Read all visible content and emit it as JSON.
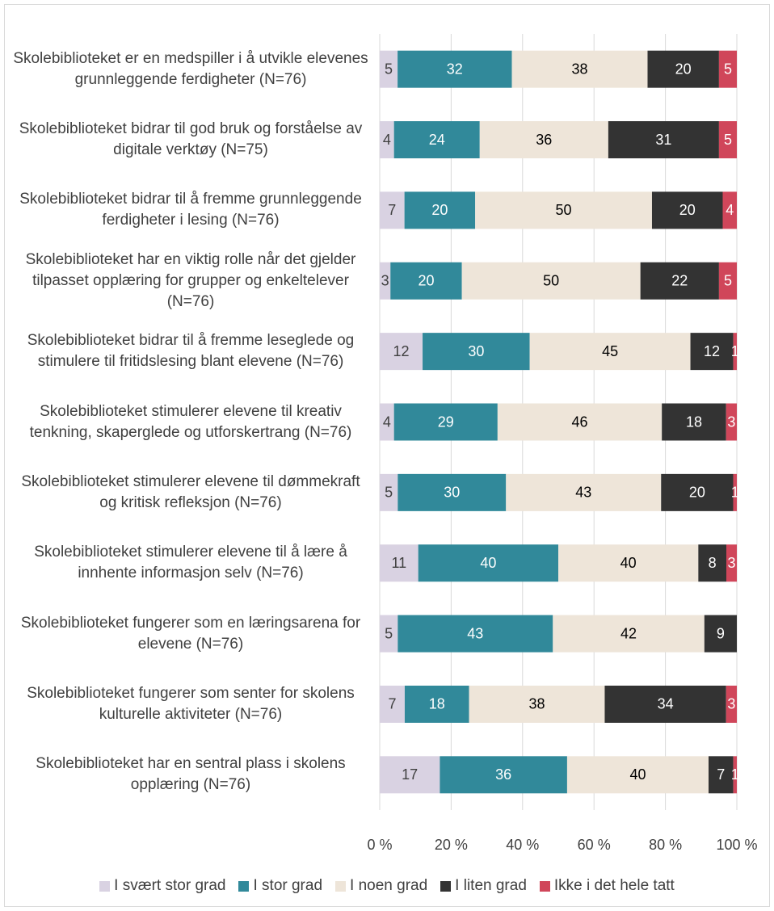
{
  "chart_data": {
    "type": "bar",
    "orientation": "horizontal",
    "stacking": "percent",
    "categories": [
      "Skolebiblioteket er en medspiller i å utvikle elevenes grunnleggende ferdigheter (N=76)",
      "Skolebiblioteket bidrar til god bruk og forståelse av digitale verktøy (N=75)",
      "Skolebiblioteket bidrar til å fremme grunnleggende ferdigheter i lesing (N=76)",
      "Skolebiblioteket har en viktig rolle når det gjelder tilpasset opplæring for grupper og enkeltelever (N=76)",
      "Skolebiblioteket bidrar til å fremme leseglede og stimulere til fritidslesing blant elevene (N=76)",
      "Skolebiblioteket stimulerer elevene til kreativ tenkning, skaperglede og utforskertrang (N=76)",
      "Skolebiblioteket stimulerer elevene til dømmekraft og kritisk refleksjon (N=76)",
      "Skolebiblioteket stimulerer elevene til å lære å innhente informasjon selv (N=76)",
      "Skolebiblioteket fungerer som en læringsarena for elevene (N=76)",
      "Skolebiblioteket fungerer som senter for skolens kulturelle aktiviteter (N=76)",
      "Skolebiblioteket har en sentral plass i skolens opplæring (N=76)"
    ],
    "series": [
      {
        "name": "I svært stor grad",
        "color": "#d9d2e2",
        "label_color": "#404040",
        "values": [
          5,
          4,
          7,
          3,
          12,
          4,
          5,
          11,
          5,
          7,
          17
        ]
      },
      {
        "name": "I stor grad",
        "color": "#31899a",
        "label_color": "#ffffff",
        "values": [
          32,
          24,
          20,
          20,
          30,
          29,
          30,
          40,
          43,
          18,
          36
        ]
      },
      {
        "name": "I noen grad",
        "color": "#eee5d9",
        "label_color": "#000000",
        "values": [
          38,
          36,
          50,
          50,
          45,
          46,
          43,
          40,
          42,
          38,
          40
        ]
      },
      {
        "name": "I liten grad",
        "color": "#333333",
        "label_color": "#ffffff",
        "values": [
          20,
          31,
          20,
          22,
          12,
          18,
          20,
          8,
          9,
          34,
          7
        ]
      },
      {
        "name": "Ikke i det hele tatt",
        "color": "#d0465a",
        "label_color": "#ffffff",
        "values": [
          5,
          5,
          4,
          5,
          1,
          3,
          1,
          3,
          null,
          3,
          1
        ]
      }
    ],
    "xlim": [
      0,
      100
    ],
    "xticks": [
      {
        "value": 0,
        "label": "0 %"
      },
      {
        "value": 20,
        "label": "20 %"
      },
      {
        "value": 40,
        "label": "40 %"
      },
      {
        "value": 60,
        "label": "60 %"
      },
      {
        "value": 80,
        "label": "80 %"
      },
      {
        "value": 100,
        "label": "100 %"
      }
    ],
    "grid": true,
    "legend": "bottom"
  }
}
